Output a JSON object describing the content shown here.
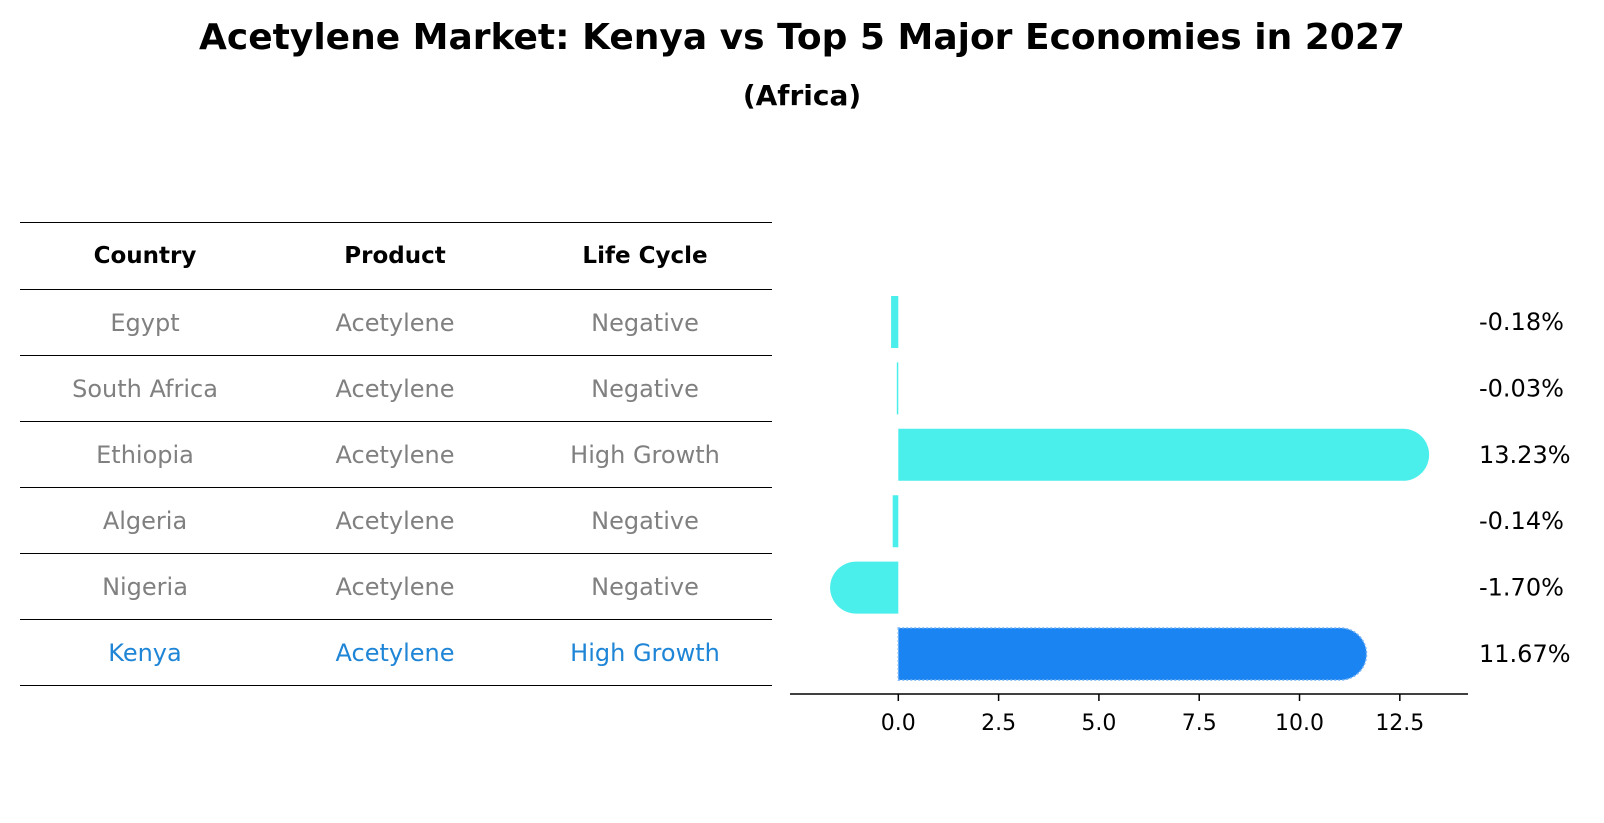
{
  "title": "Acetylene Market: Kenya vs Top 5 Major Economies in 2027",
  "subtitle": "(Africa)",
  "table": {
    "headers": [
      "Country",
      "Product",
      "Life Cycle"
    ],
    "rows": [
      {
        "country": "Egypt",
        "product": "Acetylene",
        "life_cycle": "Negative"
      },
      {
        "country": "South Africa",
        "product": "Acetylene",
        "life_cycle": "Negative"
      },
      {
        "country": "Ethiopia",
        "product": "Acetylene",
        "life_cycle": "High Growth"
      },
      {
        "country": "Algeria",
        "product": "Acetylene",
        "life_cycle": "Negative"
      },
      {
        "country": "Nigeria",
        "product": "Acetylene",
        "life_cycle": "Negative"
      },
      {
        "country": "Kenya",
        "product": "Acetylene",
        "life_cycle": "High Growth"
      }
    ]
  },
  "colors": {
    "bar": "#4aeeea",
    "highlight_bar": "#1a84f2",
    "body_text": "#808080",
    "highlight_text": "#1f85d6"
  },
  "chart_data": {
    "type": "bar",
    "orientation": "horizontal",
    "categories": [
      "Egypt",
      "South Africa",
      "Ethiopia",
      "Algeria",
      "Nigeria",
      "Kenya"
    ],
    "values": [
      -0.18,
      -0.03,
      13.23,
      -0.14,
      -1.7,
      11.67
    ],
    "labels": [
      "-0.18%",
      "-0.03%",
      "13.23%",
      "-0.14%",
      "-1.70%",
      "11.67%"
    ],
    "highlight": "Kenya",
    "xlim": [
      -2.5,
      14.0
    ],
    "xticks": [
      0.0,
      2.5,
      5.0,
      7.5,
      10.0,
      12.5
    ],
    "xtick_labels": [
      "0.0",
      "2.5",
      "5.0",
      "7.5",
      "10.0",
      "12.5"
    ],
    "title": "Acetylene Market: Kenya vs Top 5 Major Economies in 2027",
    "xlabel": "",
    "ylabel": ""
  }
}
